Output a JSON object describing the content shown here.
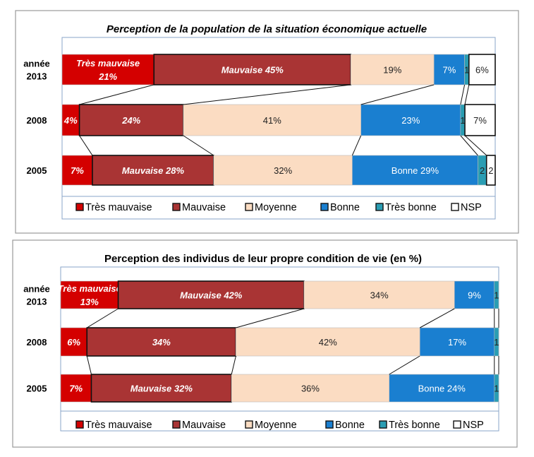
{
  "chart_data": [
    {
      "type": "bar",
      "orientation": "horizontal-stacked-100",
      "title": "Perception de la population de la situation économique actuelle",
      "categories": [
        [
          "année",
          "2013"
        ],
        [
          "2008"
        ],
        [
          "2005"
        ]
      ],
      "series": [
        {
          "name": "Très mauvaise",
          "color": "#d40000",
          "values": [
            21,
            4,
            7
          ],
          "labels": [
            [
              "Très mauvaise",
              "21%"
            ],
            [
              "4%"
            ],
            [
              "7%"
            ]
          ]
        },
        {
          "name": "Mauvaise",
          "color": "#a93434",
          "values": [
            45,
            24,
            28
          ],
          "labels": [
            [
              "Mauvaise 45%"
            ],
            [
              "24%"
            ],
            [
              "Mauvaise 28%"
            ]
          ]
        },
        {
          "name": "Moyenne",
          "color": "#fbdcc2",
          "values": [
            19,
            41,
            32
          ],
          "labels": [
            [
              "19%"
            ],
            [
              "41%"
            ],
            [
              "32%"
            ]
          ]
        },
        {
          "name": "Bonne",
          "color": "#1a7fd0",
          "values": [
            7,
            23,
            29
          ],
          "labels": [
            [
              "7%"
            ],
            [
              "23%"
            ],
            [
              "Bonne 29%"
            ]
          ]
        },
        {
          "name": "Très bonne",
          "color": "#2a9db3",
          "values": [
            1,
            1,
            2
          ],
          "labels": [
            [
              "1"
            ],
            [
              "1"
            ],
            [
              "2"
            ]
          ]
        },
        {
          "name": "NSP",
          "color": "#ffffff",
          "values": [
            6,
            7,
            2
          ],
          "labels": [
            [
              "6%"
            ],
            [
              "7%"
            ],
            [
              "2"
            ]
          ]
        }
      ],
      "legend": "bottom"
    },
    {
      "type": "bar",
      "orientation": "horizontal-stacked-100",
      "title": "Perception des individus de leur propre condition de vie (en %)",
      "categories": [
        [
          "année",
          "2013"
        ],
        [
          "2008"
        ],
        [
          "2005"
        ]
      ],
      "series": [
        {
          "name": "Très mauvaise",
          "color": "#d40000",
          "values": [
            13,
            6,
            7
          ],
          "labels": [
            [
              "Très mauvaise",
              "13%"
            ],
            [
              "6%"
            ],
            [
              "7%"
            ]
          ]
        },
        {
          "name": "Mauvaise",
          "color": "#a93434",
          "values": [
            42,
            34,
            32
          ],
          "labels": [
            [
              "Mauvaise 42%"
            ],
            [
              "34%"
            ],
            [
              "Mauvaise 32%"
            ]
          ]
        },
        {
          "name": "Moyenne",
          "color": "#fbdcc2",
          "values": [
            34,
            42,
            36
          ],
          "labels": [
            [
              "34%"
            ],
            [
              "42%"
            ],
            [
              "36%"
            ]
          ]
        },
        {
          "name": "Bonne",
          "color": "#1a7fd0",
          "values": [
            9,
            17,
            24
          ],
          "labels": [
            [
              "9%"
            ],
            [
              "17%"
            ],
            [
              "Bonne 24%"
            ]
          ]
        },
        {
          "name": "Très bonne",
          "color": "#2a9db3",
          "values": [
            1,
            1,
            1
          ],
          "labels": [
            [
              "1"
            ],
            [
              "1"
            ],
            [
              "1"
            ]
          ]
        },
        {
          "name": "NSP",
          "color": "#ffffff",
          "values": [
            0,
            0,
            0
          ],
          "labels": [
            [],
            [],
            []
          ]
        }
      ],
      "legend": "bottom"
    }
  ]
}
